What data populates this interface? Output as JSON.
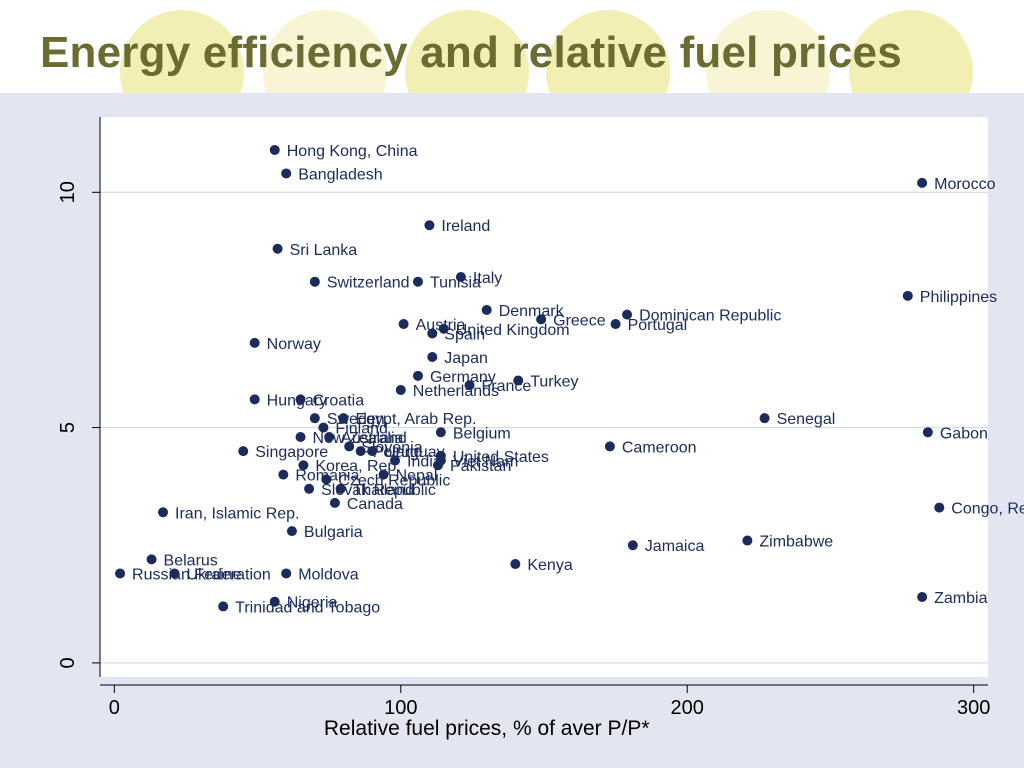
{
  "page": {
    "title": "Energy efficiency and relative fuel prices"
  },
  "colors": {
    "title": "#6b6b32",
    "point": "#1a2b5c",
    "background": "#e3e6f0",
    "gridline": "#c8d4e8"
  },
  "chart_data": {
    "type": "scatter",
    "title": "",
    "xlabel": "Relative fuel prices, % of aver P/P*",
    "ylabel": "",
    "xlim": [
      -5,
      305
    ],
    "ylim": [
      -0.3,
      11.6
    ],
    "xticks": [
      0,
      100,
      200,
      300
    ],
    "yticks": [
      0,
      5,
      10
    ],
    "grid": "horizontal",
    "legend": "none",
    "points": [
      {
        "label": "Hong Kong, China",
        "x": 56,
        "y": 10.9
      },
      {
        "label": "Bangladesh",
        "x": 60,
        "y": 10.4
      },
      {
        "label": "Morocco",
        "x": 282,
        "y": 10.2
      },
      {
        "label": "Ireland",
        "x": 110,
        "y": 9.3
      },
      {
        "label": "Sri Lanka",
        "x": 57,
        "y": 8.8
      },
      {
        "label": "Italy",
        "x": 121,
        "y": 8.2
      },
      {
        "label": "Switzerland",
        "x": 70,
        "y": 8.1
      },
      {
        "label": "Tunisia",
        "x": 106,
        "y": 8.1
      },
      {
        "label": "Philippines",
        "x": 277,
        "y": 7.8
      },
      {
        "label": "Denmark",
        "x": 130,
        "y": 7.5
      },
      {
        "label": "Dominican Republic",
        "x": 179,
        "y": 7.4
      },
      {
        "label": "Greece",
        "x": 149,
        "y": 7.3
      },
      {
        "label": "Portugal",
        "x": 175,
        "y": 7.2
      },
      {
        "label": "Austria",
        "x": 101,
        "y": 7.2
      },
      {
        "label": "United Kingdom",
        "x": 115,
        "y": 7.1
      },
      {
        "label": "Spain",
        "x": 111,
        "y": 7.0
      },
      {
        "label": "Norway",
        "x": 49,
        "y": 6.8
      },
      {
        "label": "Japan",
        "x": 111,
        "y": 6.5
      },
      {
        "label": "Germany",
        "x": 106,
        "y": 6.1
      },
      {
        "label": "Turkey",
        "x": 141,
        "y": 6.0
      },
      {
        "label": "France",
        "x": 124,
        "y": 5.9
      },
      {
        "label": "Netherlands",
        "x": 100,
        "y": 5.8
      },
      {
        "label": "Hungary",
        "x": 49,
        "y": 5.6
      },
      {
        "label": "Croatia",
        "x": 65,
        "y": 5.6
      },
      {
        "label": "Senegal",
        "x": 227,
        "y": 5.2
      },
      {
        "label": "Sweden",
        "x": 70,
        "y": 5.2
      },
      {
        "label": "Egypt, Arab Rep.",
        "x": 80,
        "y": 5.2
      },
      {
        "label": "Finland",
        "x": 73,
        "y": 5.0
      },
      {
        "label": "Gabon",
        "x": 284,
        "y": 4.9
      },
      {
        "label": "Belgium",
        "x": 114,
        "y": 4.9
      },
      {
        "label": "New Zealand",
        "x": 65,
        "y": 4.8
      },
      {
        "label": "Australia",
        "x": 75,
        "y": 4.8
      },
      {
        "label": "Slovenia",
        "x": 82,
        "y": 4.6
      },
      {
        "label": "Cameroon",
        "x": 173,
        "y": 4.6
      },
      {
        "label": "Singapore",
        "x": 45,
        "y": 4.5
      },
      {
        "label": "Poland",
        "x": 86,
        "y": 4.5
      },
      {
        "label": "Uruguay",
        "x": 90,
        "y": 4.5
      },
      {
        "label": "United States",
        "x": 114,
        "y": 4.4
      },
      {
        "label": "Viet Nam",
        "x": 114,
        "y": 4.3
      },
      {
        "label": "India",
        "x": 98,
        "y": 4.3
      },
      {
        "label": "Pakistan",
        "x": 113,
        "y": 4.2
      },
      {
        "label": "Korea, Rep.",
        "x": 66,
        "y": 4.2
      },
      {
        "label": "Nepal",
        "x": 94,
        "y": 4.0
      },
      {
        "label": "Romania",
        "x": 59,
        "y": 4.0
      },
      {
        "label": "Czech Republic",
        "x": 74,
        "y": 3.9
      },
      {
        "label": "Slovak Republic",
        "x": 68,
        "y": 3.7
      },
      {
        "label": "Thailand",
        "x": 79,
        "y": 3.7
      },
      {
        "label": "Canada",
        "x": 77,
        "y": 3.4
      },
      {
        "label": "Congo, Rep.",
        "x": 288,
        "y": 3.3
      },
      {
        "label": "Iran, Islamic Rep.",
        "x": 17,
        "y": 3.2
      },
      {
        "label": "Bulgaria",
        "x": 62,
        "y": 2.8
      },
      {
        "label": "Zimbabwe",
        "x": 221,
        "y": 2.6
      },
      {
        "label": "Jamaica",
        "x": 181,
        "y": 2.5
      },
      {
        "label": "Belarus",
        "x": 13,
        "y": 2.2
      },
      {
        "label": "Kenya",
        "x": 140,
        "y": 2.1
      },
      {
        "label": "Russian Federation",
        "x": 2,
        "y": 1.9
      },
      {
        "label": "Ukraine",
        "x": 21,
        "y": 1.9
      },
      {
        "label": "Moldova",
        "x": 60,
        "y": 1.9
      },
      {
        "label": "Zambia",
        "x": 282,
        "y": 1.4
      },
      {
        "label": "Nigeria",
        "x": 56,
        "y": 1.3
      },
      {
        "label": "Trinidad and Tobago",
        "x": 38,
        "y": 1.2
      }
    ]
  }
}
